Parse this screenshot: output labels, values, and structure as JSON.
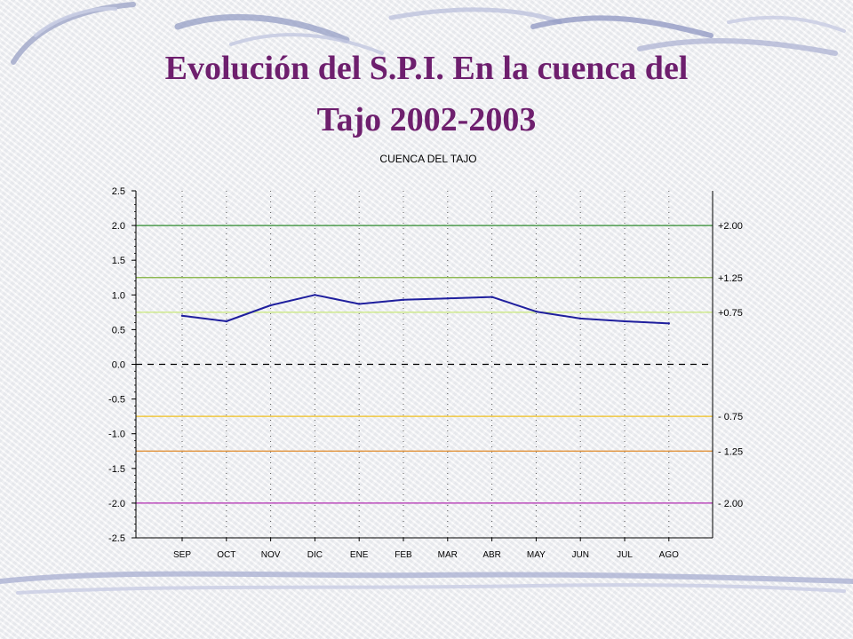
{
  "slide": {
    "title_line1": "Evolución del S.P.I. En la cuenca del",
    "title_line2": "Tajo 2002-2003"
  },
  "colors": {
    "title": "#6e1f6e",
    "series": "#1f1f9e",
    "threshold_plus_2_00": "#2e8b2e",
    "threshold_plus_1_25": "#7fb03a",
    "threshold_plus_0_75": "#c8e87a",
    "threshold_minus_0_75": "#f0c020",
    "threshold_minus_1_25": "#e08a2a",
    "threshold_minus_2_00": "#b02ab0"
  },
  "chart_data": {
    "type": "line",
    "title": "CUENCA DEL TAJO",
    "xlabel": "",
    "ylabel": "",
    "ylim": [
      -2.5,
      2.5
    ],
    "yticks": [
      "2.5",
      "2.0",
      "1.5",
      "1.0",
      "0.5",
      "0.0",
      "-0.5",
      "-1.0",
      "-1.5",
      "-2.0",
      "-2.5"
    ],
    "categories": [
      "SEP",
      "OCT",
      "NOV",
      "DIC",
      "ENE",
      "FEB",
      "MAR",
      "ABR",
      "MAY",
      "JUN",
      "JUL",
      "AGO"
    ],
    "series": [
      {
        "values": [
          0.7,
          0.62,
          0.85,
          1.0,
          0.87,
          0.93,
          0.95,
          0.97,
          0.76,
          0.66,
          0.62,
          0.59
        ]
      }
    ],
    "thresholds": [
      {
        "value": 2.0,
        "label": "+2.00"
      },
      {
        "value": 1.25,
        "label": "+1.25"
      },
      {
        "value": 0.75,
        "label": "+0.75"
      },
      {
        "value": -0.75,
        "label": "- 0.75"
      },
      {
        "value": -1.25,
        "label": "- 1.25"
      },
      {
        "value": -2.0,
        "label": "- 2.00"
      }
    ],
    "zero_line": "dashed",
    "grid": "vertical-dotted",
    "legend": "none"
  }
}
